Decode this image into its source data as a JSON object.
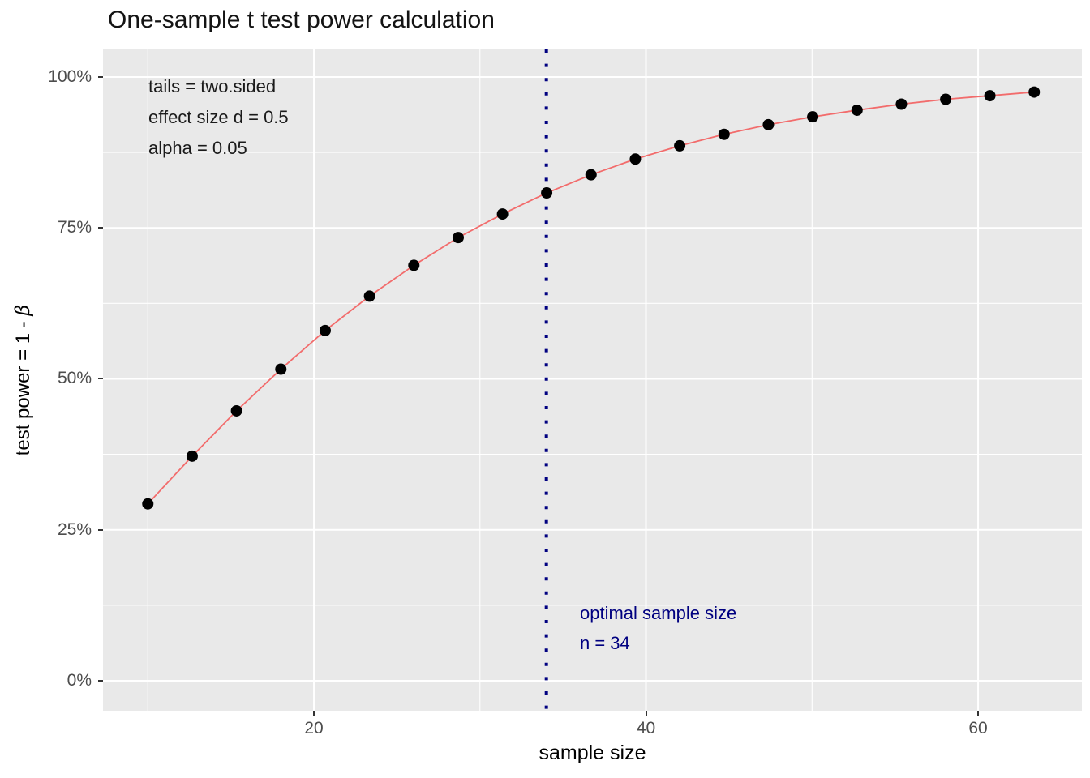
{
  "title": "One-sample t test power calculation",
  "axes": {
    "x": {
      "label": "sample size",
      "tick_labels": [
        "20",
        "40",
        "60"
      ]
    },
    "y": {
      "label": "test power = 1 - β",
      "label_prefix": "test power = 1 - ",
      "label_symbol": "β",
      "tick_labels": [
        "0%",
        "25%",
        "50%",
        "75%",
        "100%"
      ]
    }
  },
  "chart_data": {
    "type": "line",
    "title": "One-sample t test power calculation",
    "xlabel": "sample size",
    "ylabel": "test power = 1 - β",
    "x": [
      10,
      12.67,
      15.34,
      18.01,
      20.68,
      23.35,
      26.02,
      28.69,
      31.36,
      34.02,
      36.69,
      39.36,
      42.03,
      44.7,
      47.37,
      50.04,
      52.71,
      55.38,
      58.05,
      60.71,
      63.38
    ],
    "series": [
      {
        "name": "test power",
        "values": [
          0.293,
          0.372,
          0.447,
          0.516,
          0.58,
          0.637,
          0.688,
          0.734,
          0.773,
          0.808,
          0.838,
          0.864,
          0.886,
          0.905,
          0.921,
          0.934,
          0.945,
          0.955,
          0.963,
          0.969,
          0.975
        ]
      }
    ],
    "xlim": [
      7.3,
      66.25
    ],
    "ylim": [
      -0.0497,
      1.0456
    ],
    "x_ticks": [
      20,
      40,
      60
    ],
    "x_minor_gridlines": [
      10,
      30,
      50
    ],
    "y_ticks": [
      0,
      0.25,
      0.5,
      0.75,
      1
    ],
    "y_tick_labels": [
      "0%",
      "25%",
      "50%",
      "75%",
      "100%"
    ],
    "y_minor_gridlines": [
      0.125,
      0.375,
      0.625,
      0.875
    ],
    "grid": true,
    "legend": "none",
    "vline": {
      "x": 34,
      "style": "dotted",
      "color": "#000080"
    },
    "colors": {
      "line": "#f26c6c",
      "point": "#000000",
      "panel": "#E9E9E9",
      "grid": "#FFFFFF",
      "tick_text": "#4d4d4d",
      "annotation_navy": "#000080"
    },
    "annotations": [
      {
        "text": "tails = two.sided",
        "x": 10,
        "y": 0.983,
        "color": "#1a1a1a"
      },
      {
        "text": "effect size d = 0.5",
        "x": 10,
        "y": 0.931,
        "color": "#1a1a1a"
      },
      {
        "text": "alpha = 0.05",
        "x": 10,
        "y": 0.883,
        "color": "#1a1a1a"
      },
      {
        "text": "optimal sample size",
        "x": 36,
        "y": 0.112,
        "color": "#000080"
      },
      {
        "text": "n = 34",
        "x": 36,
        "y": 0.066,
        "color": "#000080"
      }
    ]
  }
}
